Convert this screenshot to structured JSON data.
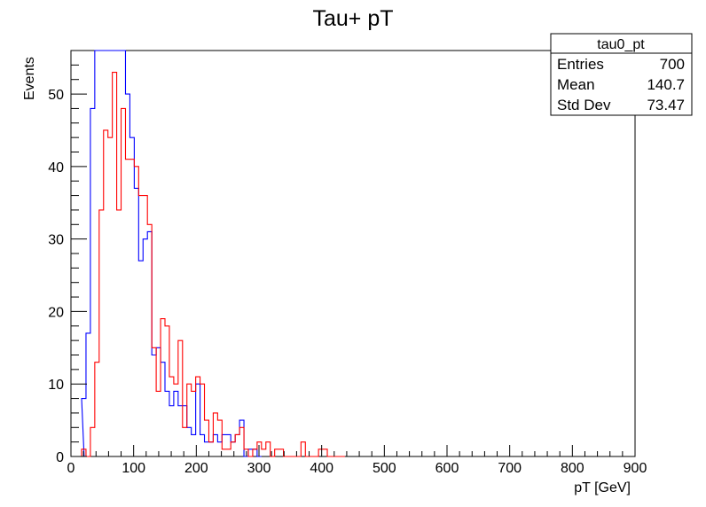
{
  "chart_data": {
    "type": "histogram",
    "title": "Tau+ pT",
    "xlabel": "pT [GeV]",
    "ylabel": "Events",
    "xlim": [
      0,
      900
    ],
    "ylim": [
      0,
      56
    ],
    "bin_width": 7,
    "x_ticks": [
      0,
      100,
      200,
      300,
      400,
      500,
      600,
      700,
      800,
      900
    ],
    "y_ticks": [
      0,
      10,
      20,
      30,
      40,
      50
    ],
    "series": [
      {
        "color": "#0000ff",
        "bins": [
          [
            14,
            0
          ],
          [
            17,
            8
          ],
          [
            24,
            17
          ],
          [
            31,
            48
          ],
          [
            38,
            56
          ],
          [
            45,
            56
          ],
          [
            52,
            56
          ],
          [
            59,
            56
          ],
          [
            66,
            56
          ],
          [
            73,
            56
          ],
          [
            80,
            56
          ],
          [
            87,
            50
          ],
          [
            94,
            44
          ],
          [
            101,
            37
          ],
          [
            108,
            27
          ],
          [
            115,
            30
          ],
          [
            122,
            31
          ],
          [
            129,
            14
          ],
          [
            136,
            15
          ],
          [
            143,
            13
          ],
          [
            150,
            9
          ],
          [
            157,
            7
          ],
          [
            164,
            9
          ],
          [
            171,
            7
          ],
          [
            178,
            7
          ],
          [
            185,
            4
          ],
          [
            192,
            3
          ],
          [
            199,
            10
          ],
          [
            206,
            3
          ],
          [
            213,
            2
          ],
          [
            220,
            2
          ],
          [
            227,
            3
          ],
          [
            234,
            2
          ],
          [
            241,
            3
          ],
          [
            248,
            3
          ],
          [
            255,
            2
          ],
          [
            262,
            3
          ],
          [
            269,
            5
          ],
          [
            276,
            0
          ],
          [
            283,
            1
          ],
          [
            290,
            1
          ],
          [
            297,
            0
          ]
        ]
      },
      {
        "color": "#ff0000",
        "bins": [
          [
            17,
            1
          ],
          [
            24,
            0
          ],
          [
            31,
            4
          ],
          [
            38,
            13
          ],
          [
            45,
            34
          ],
          [
            52,
            45
          ],
          [
            59,
            44
          ],
          [
            66,
            53
          ],
          [
            73,
            34
          ],
          [
            80,
            48
          ],
          [
            87,
            41
          ],
          [
            94,
            41
          ],
          [
            101,
            40
          ],
          [
            108,
            36
          ],
          [
            115,
            36
          ],
          [
            122,
            32
          ],
          [
            129,
            15
          ],
          [
            136,
            9
          ],
          [
            143,
            19
          ],
          [
            150,
            18
          ],
          [
            157,
            11
          ],
          [
            164,
            10
          ],
          [
            171,
            16
          ],
          [
            178,
            4
          ],
          [
            185,
            10
          ],
          [
            192,
            9
          ],
          [
            199,
            11
          ],
          [
            206,
            10
          ],
          [
            213,
            5
          ],
          [
            220,
            2
          ],
          [
            227,
            6
          ],
          [
            234,
            5
          ],
          [
            241,
            1
          ],
          [
            248,
            1
          ],
          [
            255,
            2
          ],
          [
            262,
            3
          ],
          [
            269,
            4
          ],
          [
            276,
            1
          ],
          [
            283,
            0
          ],
          [
            290,
            1
          ],
          [
            297,
            2
          ],
          [
            304,
            1
          ],
          [
            311,
            2
          ],
          [
            318,
            0
          ],
          [
            325,
            1
          ],
          [
            332,
            1
          ],
          [
            339,
            0
          ],
          [
            346,
            0
          ],
          [
            353,
            0
          ],
          [
            360,
            0
          ],
          [
            367,
            2
          ],
          [
            374,
            0
          ],
          [
            381,
            0
          ],
          [
            388,
            0
          ],
          [
            395,
            1
          ],
          [
            402,
            1
          ],
          [
            409,
            0
          ],
          [
            416,
            0
          ],
          [
            423,
            0
          ],
          [
            430,
            0
          ]
        ]
      }
    ]
  },
  "stats_box": {
    "title": "tau0_pt",
    "rows": [
      {
        "label": "Entries",
        "value": "700"
      },
      {
        "label": "Mean",
        "value": "140.7"
      },
      {
        "label": "Std Dev",
        "value": "73.47"
      }
    ]
  }
}
